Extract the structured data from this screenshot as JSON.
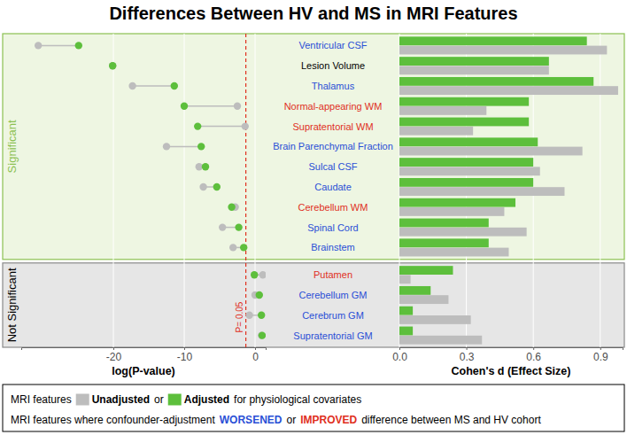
{
  "chart_data": [
    {
      "type": "dumbbell",
      "title": "Differences Between HV and MS in MRI Features",
      "categories": [
        "Ventricular CSF",
        "Lesion Volume",
        "Thalamus",
        "Normal-appearing WM",
        "Supratentorial WM",
        "Brain Parenchymal Fraction",
        "Sulcal CSF",
        "Caudate",
        "Cerebellum WM",
        "Spinal Cord",
        "Brainstem",
        "Putamen",
        "Cerebellum GM",
        "Cerebrum GM",
        "Supratentorial GM"
      ],
      "label_colors": [
        "#2a4fd6",
        "#000000",
        "#2a4fd6",
        "#e0301e",
        "#e0301e",
        "#2a4fd6",
        "#2a4fd6",
        "#2a4fd6",
        "#e0301e",
        "#2a4fd6",
        "#2a4fd6",
        "#e0301e",
        "#2a4fd6",
        "#2a4fd6",
        "#2a4fd6"
      ],
      "groups": [
        "Significant",
        "Significant",
        "Significant",
        "Significant",
        "Significant",
        "Significant",
        "Significant",
        "Significant",
        "Significant",
        "Significant",
        "Significant",
        "Not Significant",
        "Not Significant",
        "Not Significant",
        "Not Significant"
      ],
      "series": [
        {
          "name": "Unadjusted",
          "color": "#bdbdbd",
          "values": [
            -30.6,
            -20.1,
            -17.3,
            -2.5,
            -1.4,
            -12.5,
            -7.9,
            -7.3,
            -2.8,
            -4.6,
            -3.1,
            1.1,
            0.0,
            -0.8,
            0.9
          ]
        },
        {
          "name": "Adjusted",
          "color": "#5dbf3c",
          "values": [
            -24.9,
            -20.1,
            -11.4,
            -10.0,
            -8.1,
            -7.6,
            -7.0,
            -5.4,
            -3.3,
            -2.3,
            -1.6,
            -0.1,
            0.6,
            0.9,
            1.0
          ]
        }
      ],
      "xlabel": "log(P-value)",
      "xlim": [
        -33,
        1.5
      ],
      "xticks": [
        -20,
        -10,
        0
      ],
      "grid": true,
      "reference_line": {
        "value": -1.3,
        "label": "P= 0.05",
        "color": "#e0301e"
      },
      "legend": "bottom",
      "legend_lines": [
        [
          {
            "text": "MRI features"
          },
          {
            "series": 0
          },
          {
            "text": "or"
          },
          {
            "series": 1
          },
          {
            "text": "for physiological covariates"
          }
        ],
        [
          {
            "text": "MRI features where confounder-adjustment"
          },
          {
            "text": "WORSENED",
            "color": "#2a4fd6"
          },
          {
            "text": "or"
          },
          {
            "text": "IMPROVED",
            "color": "#e0301e"
          },
          {
            "text": "difference between MS and HV cohort"
          }
        ]
      ]
    },
    {
      "type": "bar",
      "orientation": "horizontal",
      "xlabel": "Cohen's d (Effect Size)",
      "xlim": [
        0,
        1.0
      ],
      "xticks": [
        {
          "value": 0,
          "label": "0.0"
        },
        0.3,
        0.6,
        0.9
      ],
      "grid": true,
      "series": [
        {
          "color": "#bdbdbd",
          "values": [
            0.93,
            0.67,
            0.98,
            0.39,
            0.33,
            0.82,
            0.63,
            0.74,
            0.47,
            0.57,
            0.49,
            0.05,
            0.22,
            0.32,
            0.37
          ]
        },
        {
          "color": "#5dbf3c",
          "values": [
            0.84,
            0.67,
            0.87,
            0.58,
            0.58,
            0.62,
            0.6,
            0.6,
            0.52,
            0.4,
            0.4,
            0.24,
            0.14,
            0.06,
            0.06
          ]
        }
      ]
    }
  ]
}
